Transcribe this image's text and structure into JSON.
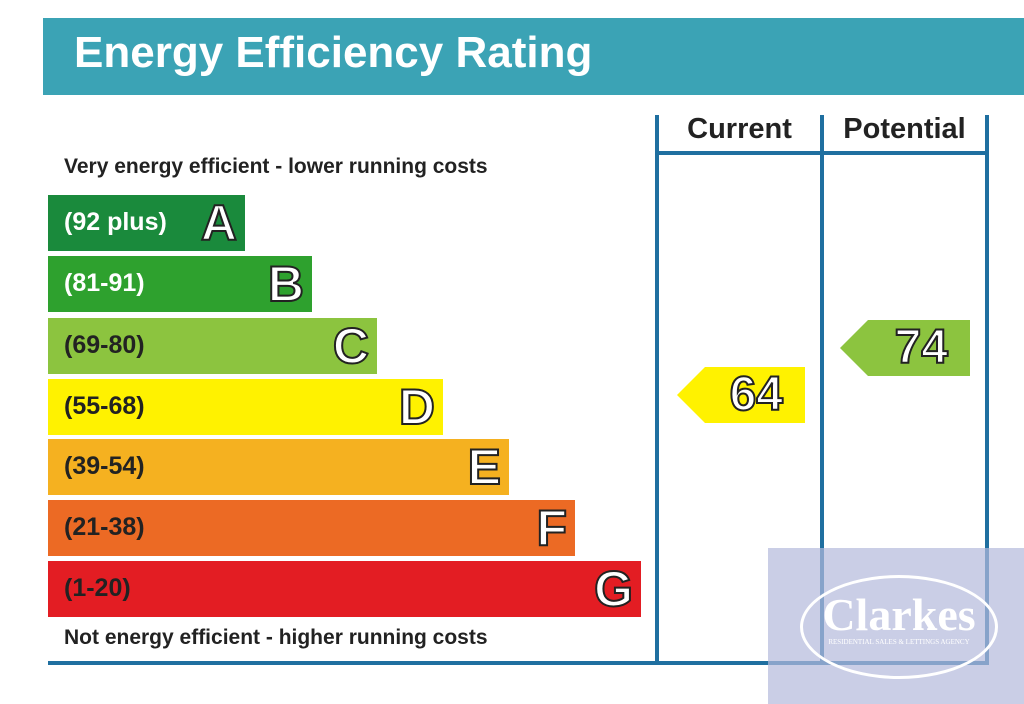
{
  "chart_data": {
    "type": "bar",
    "title": "Energy Efficiency Rating",
    "top_note": "Very energy efficient - lower running costs",
    "bottom_note": "Not energy efficient - higher running costs",
    "bands": [
      {
        "letter": "A",
        "range": "(92 plus)",
        "color": "#1a8a3c",
        "text_color": "#fff"
      },
      {
        "letter": "B",
        "range": "(81-91)",
        "color": "#2ea12e",
        "text_color": "#fff"
      },
      {
        "letter": "C",
        "range": "(69-80)",
        "color": "#8cc43f",
        "text_color": "#222"
      },
      {
        "letter": "D",
        "range": "(55-68)",
        "color": "#fff200",
        "text_color": "#222"
      },
      {
        "letter": "E",
        "range": "(39-54)",
        "color": "#f5b120",
        "text_color": "#222"
      },
      {
        "letter": "F",
        "range": "(21-38)",
        "color": "#ec6a24",
        "text_color": "#222"
      },
      {
        "letter": "G",
        "range": "(1-20)",
        "color": "#e31d23",
        "text_color": "#222"
      }
    ],
    "columns": {
      "current": "Current",
      "potential": "Potential"
    },
    "current": {
      "value": "64",
      "band": "D",
      "color": "#fff200"
    },
    "potential": {
      "value": "74",
      "band": "C",
      "color": "#8cc43f"
    }
  },
  "watermark": {
    "name": "Clarkes",
    "tagline": "RESIDENTIAL SALES & LETTINGS AGENCY"
  }
}
